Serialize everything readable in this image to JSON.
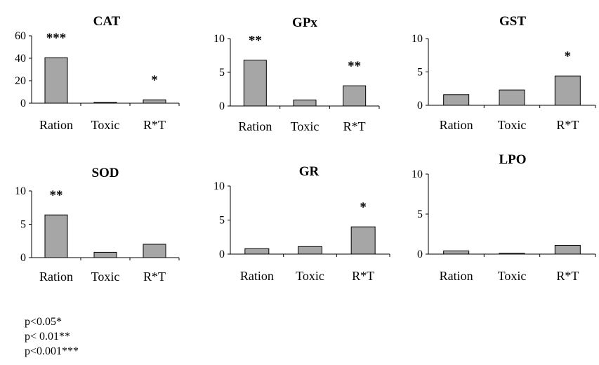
{
  "chart_data": [
    {
      "type": "bar",
      "title": "CAT",
      "categories": [
        "Ration",
        "Toxic",
        "R*T"
      ],
      "values": [
        40.5,
        0.8,
        3.0
      ],
      "significance": [
        "***",
        "",
        "*"
      ],
      "ylim": [
        0,
        60
      ],
      "yticks": [
        "0",
        "20",
        "40",
        "60"
      ],
      "color": "#a6a6a6",
      "grid": false
    },
    {
      "type": "bar",
      "title": "GPx",
      "categories": [
        "Ration",
        "Toxic",
        "R*T"
      ],
      "values": [
        6.8,
        0.9,
        3.0
      ],
      "significance": [
        "**",
        "",
        "**"
      ],
      "ylim": [
        0,
        10
      ],
      "yticks": [
        "0",
        "5",
        "10"
      ],
      "color": "#a6a6a6",
      "grid": false
    },
    {
      "type": "bar",
      "title": "GST",
      "categories": [
        "Ration",
        "Toxic",
        "R*T"
      ],
      "values": [
        1.6,
        2.3,
        4.4
      ],
      "significance": [
        "",
        "",
        "*"
      ],
      "ylim": [
        0,
        10
      ],
      "yticks": [
        "0",
        "5",
        "10"
      ],
      "color": "#a6a6a6",
      "grid": false
    },
    {
      "type": "bar",
      "title": "SOD",
      "categories": [
        "Ration",
        "Toxic",
        "R*T"
      ],
      "values": [
        6.4,
        0.8,
        2.0
      ],
      "significance": [
        "**",
        "",
        ""
      ],
      "ylim": [
        0,
        10
      ],
      "yticks": [
        "0",
        "5",
        "10"
      ],
      "color": "#a6a6a6",
      "grid": false
    },
    {
      "type": "bar",
      "title": "GR",
      "categories": [
        "Ration",
        "Toxic",
        "R*T"
      ],
      "values": [
        0.8,
        1.1,
        4.0
      ],
      "significance": [
        "",
        "",
        "*"
      ],
      "ylim": [
        0,
        10
      ],
      "yticks": [
        "0",
        "5",
        "10"
      ],
      "color": "#a6a6a6",
      "grid": false
    },
    {
      "type": "bar",
      "title": "LPO",
      "categories": [
        "Ration",
        "Toxic",
        "R*T"
      ],
      "values": [
        0.4,
        0.1,
        1.1
      ],
      "significance": [
        "",
        "",
        ""
      ],
      "ylim": [
        0,
        10
      ],
      "yticks": [
        "0",
        "5",
        "10"
      ],
      "color": "#a6a6a6",
      "grid": false
    }
  ],
  "legend": {
    "p05": "p<0.05*",
    "p01": "p< 0.01**",
    "p001": "p<0.001***"
  }
}
